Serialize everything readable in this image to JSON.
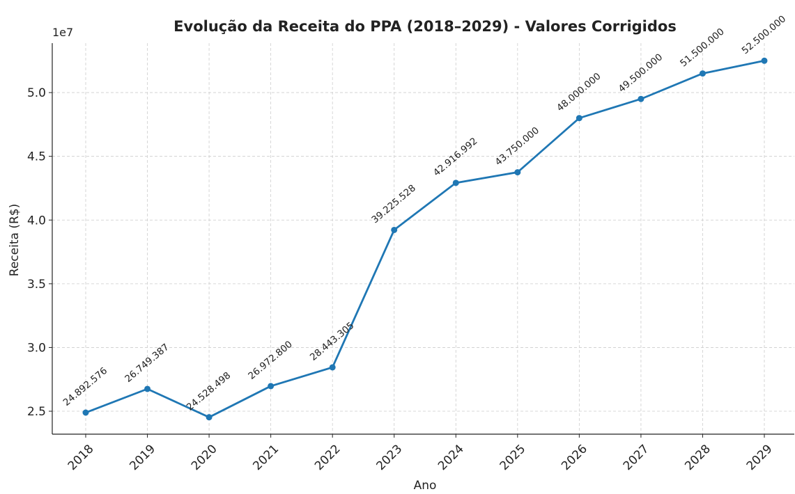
{
  "chart_data": {
    "type": "line",
    "title": "Evolução da Receita do PPA (2018–2029) - Valores Corrigidos",
    "x_label": "Ano",
    "y_label": "Receita (R$)",
    "y_offset_label": "1e7",
    "categories": [
      "2018",
      "2019",
      "2020",
      "2021",
      "2022",
      "2023",
      "2024",
      "2025",
      "2026",
      "2027",
      "2028",
      "2029"
    ],
    "series": [
      {
        "name": "Receita",
        "color": "#1f77b4",
        "values": [
          24892576,
          26749387,
          24528498,
          26972800,
          28443305,
          39225528,
          42916992,
          43750000,
          48000000,
          49500000,
          51500000,
          52500000
        ],
        "value_labels": [
          "24.892.576",
          "26.749.387",
          "24.528.498",
          "26.972.800",
          "28.443.305",
          "39.225.528",
          "42.916.992",
          "43.750.000",
          "48.000.000",
          "49.500.000",
          "51.500.000",
          "52.500.000"
        ]
      }
    ],
    "ylim": [
      23200000,
      53880000
    ],
    "yticks": [
      {
        "value": 25000000,
        "label": "2.5"
      },
      {
        "value": 30000000,
        "label": "3.0"
      },
      {
        "value": 35000000,
        "label": "3.5"
      },
      {
        "value": 40000000,
        "label": "4.0"
      },
      {
        "value": 45000000,
        "label": "4.5"
      },
      {
        "value": 50000000,
        "label": "5.0"
      }
    ],
    "grid": true
  }
}
